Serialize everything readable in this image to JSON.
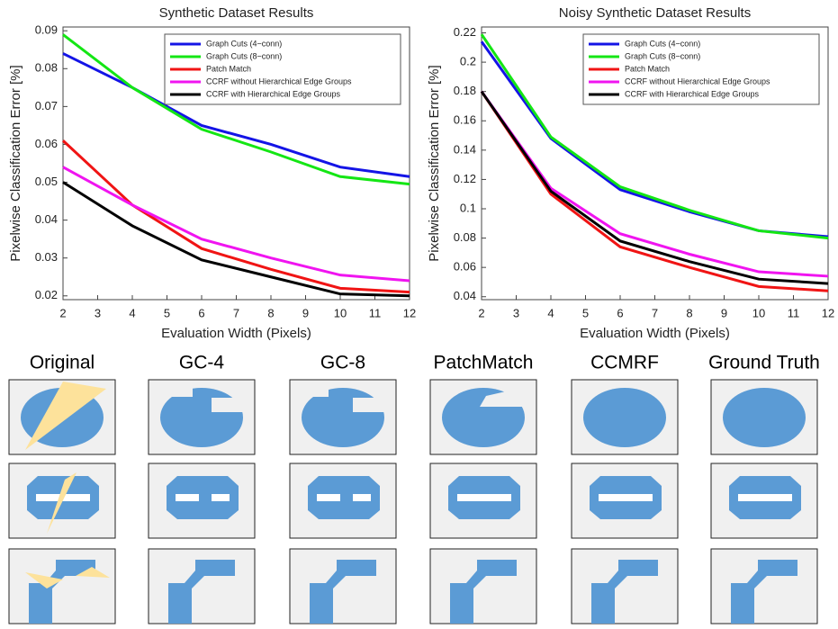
{
  "chart_data": [
    {
      "type": "line",
      "title": "Synthetic Dataset Results",
      "x_label": "Evaluation Width (Pixels)",
      "y_label": "Pixelwise Classification Error [%]",
      "x": [
        2,
        4,
        6,
        8,
        10,
        12
      ],
      "xlim": [
        2,
        12
      ],
      "xticks": [
        2,
        3,
        4,
        5,
        6,
        7,
        8,
        9,
        10,
        11,
        12
      ],
      "ylim": [
        0.019,
        0.091
      ],
      "yticks": [
        0.02,
        0.03,
        0.04,
        0.05,
        0.06,
        0.07,
        0.08,
        0.09
      ],
      "grid": false,
      "legend": "upper right",
      "series": [
        {
          "name": "Graph Cuts (4−conn)",
          "color": "#1414e6",
          "values": [
            0.084,
            0.075,
            0.065,
            0.06,
            0.054,
            0.0515
          ]
        },
        {
          "name": "Graph Cuts (8−conn)",
          "color": "#14e614",
          "values": [
            0.089,
            0.075,
            0.064,
            0.058,
            0.0515,
            0.0495
          ]
        },
        {
          "name": "Patch Match",
          "color": "#f01414",
          "values": [
            0.061,
            0.044,
            0.0325,
            0.027,
            0.022,
            0.021
          ]
        },
        {
          "name": "CCRF without Hierarchical Edge Groups",
          "color": "#f014f0",
          "values": [
            0.054,
            0.044,
            0.035,
            0.03,
            0.0255,
            0.024
          ]
        },
        {
          "name": "CCRF with Hierarchical Edge Groups",
          "color": "#000000",
          "values": [
            0.05,
            0.0385,
            0.0295,
            0.025,
            0.0205,
            0.02
          ]
        }
      ]
    },
    {
      "type": "line",
      "title": "Noisy Synthetic Dataset Results",
      "x_label": "Evaluation Width (Pixels)",
      "y_label": "Pixelwise Classification Error [%]",
      "x": [
        2,
        4,
        6,
        8,
        10,
        12
      ],
      "xlim": [
        2,
        12
      ],
      "xticks": [
        2,
        3,
        4,
        5,
        6,
        7,
        8,
        9,
        10,
        11,
        12
      ],
      "ylim": [
        0.038,
        0.224
      ],
      "yticks": [
        0.04,
        0.06,
        0.08,
        0.1,
        0.12,
        0.14,
        0.16,
        0.18,
        0.2,
        0.22
      ],
      "grid": false,
      "legend": "upper right",
      "series": [
        {
          "name": "Graph Cuts (4−conn)",
          "color": "#1414e6",
          "values": [
            0.214,
            0.148,
            0.113,
            0.098,
            0.085,
            0.081
          ]
        },
        {
          "name": "Graph Cuts (8−conn)",
          "color": "#14e614",
          "values": [
            0.219,
            0.149,
            0.115,
            0.099,
            0.085,
            0.08
          ]
        },
        {
          "name": "Patch Match",
          "color": "#f01414",
          "values": [
            0.18,
            0.11,
            0.074,
            0.06,
            0.047,
            0.044
          ]
        },
        {
          "name": "CCRF without Hierarchical Edge Groups",
          "color": "#f014f0",
          "values": [
            0.18,
            0.114,
            0.083,
            0.069,
            0.057,
            0.054
          ]
        },
        {
          "name": "CCRF with Hierarchical Edge Groups",
          "color": "#000000",
          "values": [
            0.18,
            0.112,
            0.078,
            0.064,
            0.052,
            0.049
          ]
        }
      ]
    }
  ],
  "image_grid": {
    "columns": [
      "Original",
      "GC-4",
      "GC-8",
      "PatchMatch",
      "CCMRF",
      "Ground Truth"
    ]
  }
}
